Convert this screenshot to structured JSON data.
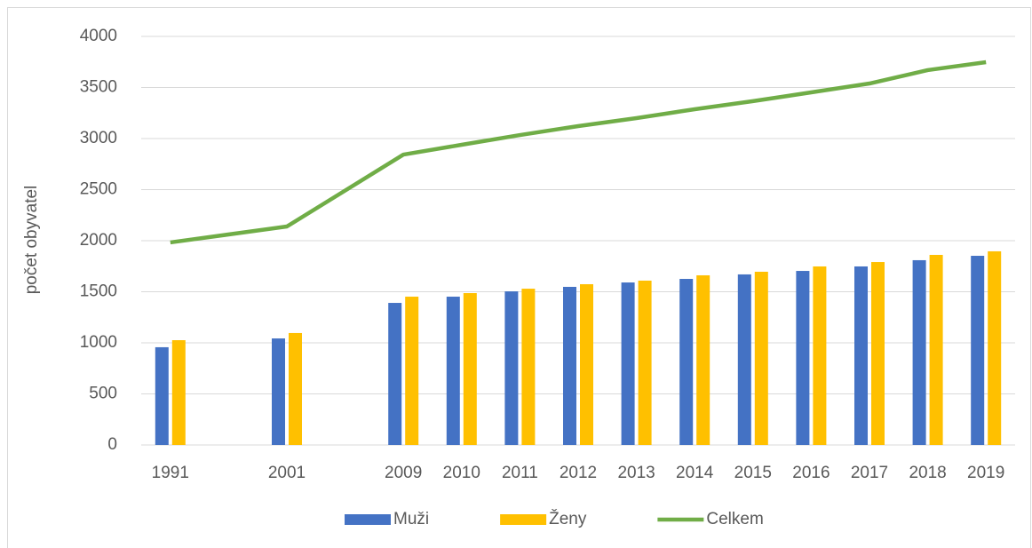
{
  "chart_data": {
    "type": "bar_line",
    "y_axis_label": "počet obyvatel",
    "categories": [
      "1991",
      null,
      "2001",
      null,
      "2009",
      "2010",
      "2011",
      "2012",
      "2013",
      "2014",
      "2015",
      "2016",
      "2017",
      "2018",
      "2019"
    ],
    "series": [
      {
        "name": "Muži",
        "type": "bar",
        "color": "#4472c4",
        "values": [
          957,
          null,
          1043,
          null,
          1391,
          1452,
          1504,
          1548,
          1591,
          1626,
          1670,
          1704,
          1748,
          1809,
          1852
        ]
      },
      {
        "name": "Ženy",
        "type": "bar",
        "color": "#ffc000",
        "values": [
          1026,
          null,
          1096,
          null,
          1452,
          1487,
          1530,
          1574,
          1609,
          1661,
          1696,
          1748,
          1791,
          1861,
          1896
        ]
      },
      {
        "name": "Celkem",
        "type": "line",
        "color": "#70ad47",
        "values": [
          1983,
          null,
          2139,
          null,
          2843,
          2939,
          3034,
          3122,
          3200,
          3287,
          3366,
          3452,
          3539,
          3670,
          3748
        ]
      }
    ],
    "connect_gaps": true,
    "ylim": [
      0,
      4000
    ],
    "yticks": [
      0,
      500,
      1000,
      1500,
      2000,
      2500,
      3000,
      3500,
      4000
    ],
    "grid": true,
    "legend": "bottom"
  }
}
